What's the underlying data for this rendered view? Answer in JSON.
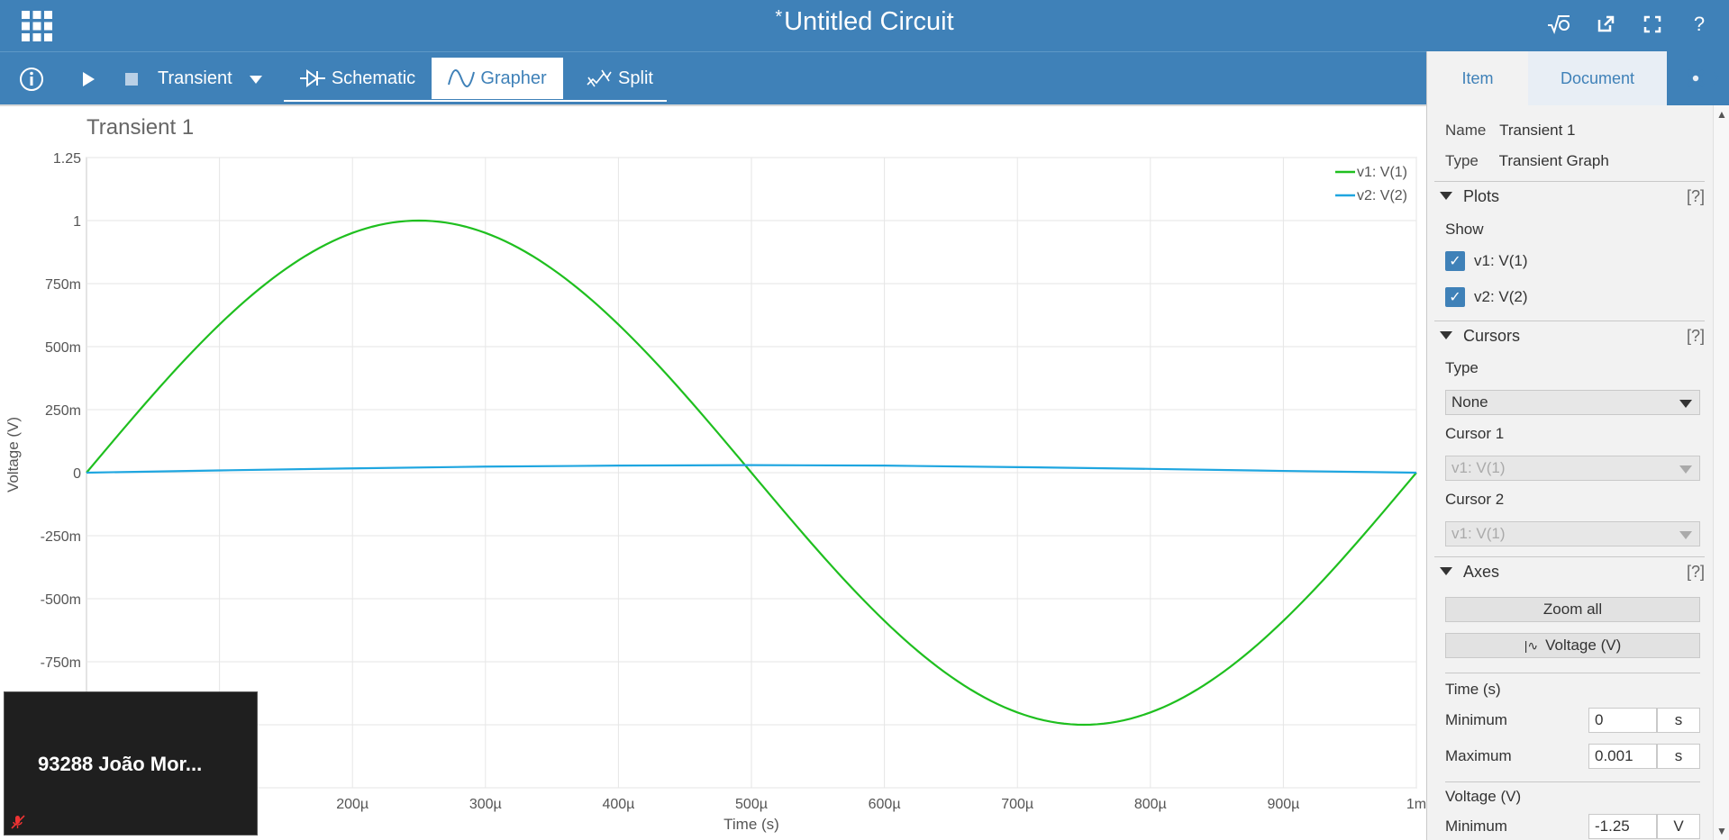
{
  "app": {
    "title_marker": "*",
    "title": "Untitled Circuit",
    "top_icons": [
      "sqrt-icon",
      "external-link-icon",
      "fullscreen-icon",
      "help-icon"
    ],
    "help_label": "?"
  },
  "toolbar": {
    "info_icon": "info-icon",
    "run_icon": "play-icon",
    "stop_icon": "stop-icon",
    "analysis_label": "Transient",
    "tabs": [
      {
        "label": "Schematic",
        "icon": "schematic-icon",
        "active": false
      },
      {
        "label": "Grapher",
        "icon": "sine-wave-icon",
        "active": true
      },
      {
        "label": "Split",
        "icon": "split-icon",
        "active": false
      }
    ]
  },
  "graph": {
    "title": "Transient 1"
  },
  "chart_data": {
    "type": "line",
    "xlabel": "Time (s)",
    "ylabel": "Voltage (V)",
    "xlim": [
      0,
      0.001
    ],
    "ylim": [
      -1.25,
      1.25
    ],
    "x_tick_labels": [
      "200µ",
      "300µ",
      "400µ",
      "500µ",
      "600µ",
      "700µ",
      "800µ",
      "900µ",
      "1m"
    ],
    "x_tick_values": [
      0.0002,
      0.0003,
      0.0004,
      0.0005,
      0.0006,
      0.0007,
      0.0008,
      0.0009,
      0.001
    ],
    "y_tick_labels": [
      "1.25",
      "1",
      "750m",
      "500m",
      "250m",
      "0",
      "-250m",
      "-500m",
      "-750m"
    ],
    "y_tick_values": [
      1.25,
      1,
      0.75,
      0.5,
      0.25,
      0,
      -0.25,
      -0.5,
      -0.75
    ],
    "grid": true,
    "legend_position": "top-right",
    "series": [
      {
        "name": "v1: V(1)",
        "color": "#1fbf1f",
        "x": [
          0,
          5e-05,
          0.0001,
          0.00015,
          0.0002,
          0.00025,
          0.0003,
          0.00035,
          0.0004,
          0.00045,
          0.0005,
          0.00055,
          0.0006,
          0.00065,
          0.0007,
          0.00075,
          0.0008,
          0.00085,
          0.0009,
          0.00095,
          0.001
        ],
        "values": [
          0,
          0.309,
          0.588,
          0.809,
          0.951,
          1.0,
          0.951,
          0.809,
          0.588,
          0.309,
          0,
          -0.309,
          -0.588,
          -0.809,
          -0.951,
          -1.0,
          -0.951,
          -0.809,
          -0.588,
          -0.309,
          0
        ]
      },
      {
        "name": "v2: V(2)",
        "color": "#1fa6e0",
        "x": [
          0,
          0.0001,
          0.0002,
          0.0003,
          0.0004,
          0.0005,
          0.0006,
          0.0007,
          0.0008,
          0.0009,
          0.001
        ],
        "values": [
          0,
          0.009,
          0.017,
          0.024,
          0.028,
          0.03,
          0.028,
          0.022,
          0.015,
          0.007,
          0
        ]
      }
    ]
  },
  "side": {
    "tabs": [
      "Item",
      "Document"
    ],
    "active_tab": "Item",
    "name_label": "Name",
    "name_value": "Transient 1",
    "type_label": "Type",
    "type_value": "Transient Graph",
    "plots": {
      "title": "Plots",
      "help": "[?]",
      "show_label": "Show",
      "items": [
        {
          "label": "v1: V(1)",
          "checked": true
        },
        {
          "label": "v2: V(2)",
          "checked": true
        }
      ]
    },
    "cursors": {
      "title": "Cursors",
      "help": "[?]",
      "type_label": "Type",
      "type_value": "None",
      "cursor1_label": "Cursor 1",
      "cursor1_value": "v1: V(1)",
      "cursor2_label": "Cursor 2",
      "cursor2_value": "v1: V(1)"
    },
    "axes": {
      "title": "Axes",
      "help": "[?]",
      "zoom_all": "Zoom all",
      "voltage_button": "Voltage (V)",
      "time_label": "Time (s)",
      "min_label": "Minimum",
      "time_min": "0",
      "time_min_unit": "s",
      "max_label": "Maximum",
      "time_max": "0.001",
      "time_max_unit": "s",
      "voltage_label": "Voltage (V)",
      "volt_min_label": "Minimum",
      "volt_min": "-1.25",
      "volt_min_unit": "V"
    }
  },
  "video_overlay": {
    "participant": "93288 João Mor..."
  }
}
